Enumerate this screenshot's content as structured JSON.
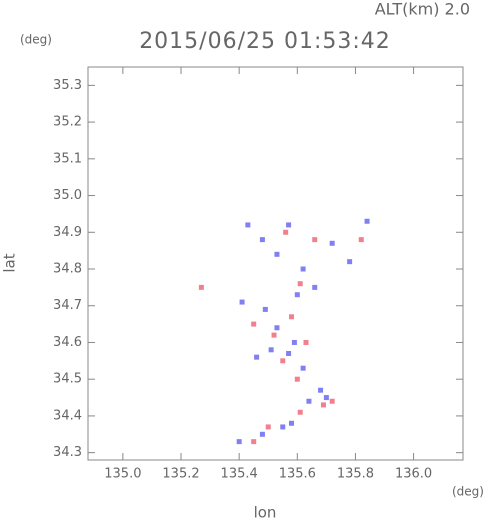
{
  "chart_data": {
    "type": "scatter",
    "altitude_label": "ALT(km) 2.0",
    "title": "2015/06/25 01:53:42",
    "y_unit": "(deg)",
    "x_unit": "(deg)",
    "xlabel": "lon",
    "ylabel": "lat",
    "xlim": [
      134.88,
      136.17
    ],
    "ylim": [
      34.28,
      35.35
    ],
    "xticks": [
      {
        "value": 135.0,
        "label": "135.0"
      },
      135.2,
      135.4,
      135.6,
      135.8,
      {
        "value": 136.0,
        "label": "136.0"
      }
    ],
    "yticks": [
      34.3,
      34.4,
      34.5,
      34.6,
      34.7,
      34.8,
      34.9,
      {
        "value": 35.0,
        "label": "35.0"
      },
      35.1,
      35.2,
      35.3
    ],
    "series": [
      {
        "color": "#f06a78",
        "x": [
          135.27,
          135.61,
          135.56,
          135.82,
          135.66,
          135.45,
          135.52,
          135.58,
          135.63,
          135.55,
          135.6,
          135.69,
          135.72,
          135.61,
          135.5,
          135.45
        ],
        "y": [
          34.75,
          34.76,
          34.9,
          34.88,
          34.88,
          34.65,
          34.62,
          34.67,
          34.6,
          34.55,
          34.5,
          34.43,
          34.44,
          34.41,
          34.37,
          34.33
        ]
      },
      {
        "color": "#6a6af0",
        "x": [
          135.43,
          135.57,
          135.48,
          135.53,
          135.62,
          135.72,
          135.78,
          135.84,
          135.41,
          135.49,
          135.53,
          135.59,
          135.51,
          135.57,
          135.46,
          135.62,
          135.68,
          135.7,
          135.64,
          135.58,
          135.55,
          135.48,
          135.4,
          135.66,
          135.6
        ],
        "y": [
          34.92,
          34.92,
          34.88,
          34.84,
          34.8,
          34.87,
          34.82,
          34.93,
          34.71,
          34.69,
          34.64,
          34.6,
          34.58,
          34.57,
          34.56,
          34.53,
          34.47,
          34.45,
          34.44,
          34.38,
          34.37,
          34.35,
          34.33,
          34.75,
          34.73
        ]
      }
    ]
  }
}
